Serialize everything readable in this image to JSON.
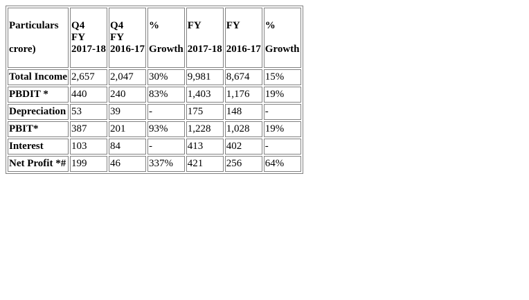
{
  "table": {
    "headers": [
      {
        "lines": [
          "Particulars",
          "",
          "crore)"
        ]
      },
      {
        "lines": [
          "Q4",
          "FY",
          "2017-18"
        ]
      },
      {
        "lines": [
          "Q4",
          "FY",
          "2016-17"
        ]
      },
      {
        "lines": [
          "%",
          "Growth"
        ]
      },
      {
        "lines": [
          "FY",
          "2017-18"
        ]
      },
      {
        "lines": [
          "FY",
          "2016-17"
        ]
      },
      {
        "lines": [
          "%",
          "Growth"
        ]
      }
    ],
    "rows": [
      {
        "label": "Total Income",
        "values": [
          "2,657",
          "2,047",
          "30%",
          "9,981",
          "8,674",
          "15%"
        ]
      },
      {
        "label": "PBDIT *",
        "values": [
          "440",
          "240",
          "83%",
          "1,403",
          "1,176",
          "19%"
        ]
      },
      {
        "label": "Depreciation",
        "values": [
          "53",
          "39",
          "-",
          "175",
          "148",
          "-"
        ]
      },
      {
        "label": "PBIT*",
        "values": [
          "387",
          "201",
          "93%",
          "1,228",
          "1,028",
          "19%"
        ]
      },
      {
        "label": "Interest",
        "values": [
          "103",
          "84",
          "-",
          "413",
          "402",
          "-"
        ]
      },
      {
        "label": "Net Profit *#",
        "values": [
          "199",
          "46",
          "337%",
          "421",
          "256",
          "64%"
        ]
      }
    ]
  }
}
